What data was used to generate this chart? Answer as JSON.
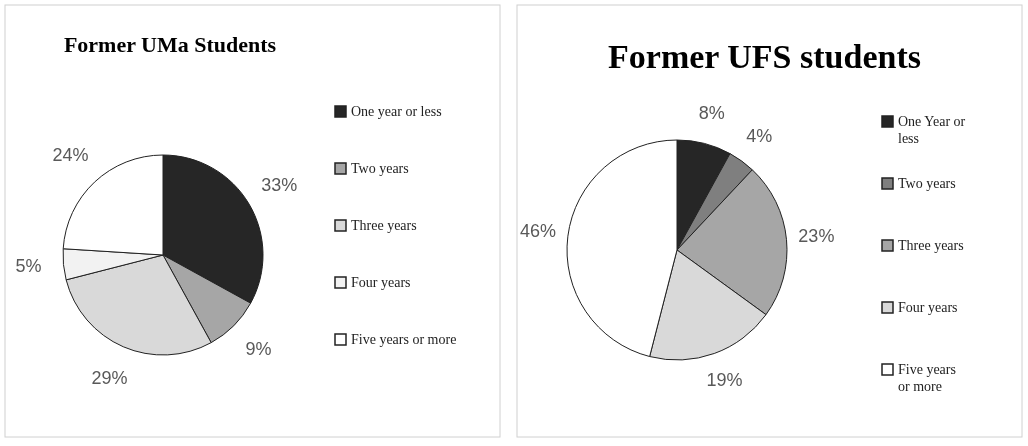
{
  "chart_data": [
    {
      "type": "pie",
      "title": "Former UMa Students",
      "categories": [
        "One year or less",
        "Two years",
        "Three years",
        "Four years",
        "Five years or more"
      ],
      "values": [
        33,
        9,
        29,
        5,
        24
      ],
      "value_labels": [
        "33%",
        "9%",
        "29%",
        "5%",
        "24%"
      ],
      "colors": [
        "#262626",
        "#a6a6a6",
        "#d9d9d9",
        "#f2f2f2",
        "#ffffff"
      ],
      "legend": "right"
    },
    {
      "type": "pie",
      "title": "Former UFS students",
      "categories": [
        "One Year or less",
        "Two years",
        "Three years",
        "Four years",
        "Five years or more"
      ],
      "values": [
        8,
        4,
        23,
        19,
        46
      ],
      "value_labels": [
        "8%",
        "4%",
        "23%",
        "19%",
        "46%"
      ],
      "colors": [
        "#262626",
        "#7f7f7f",
        "#a6a6a6",
        "#d9d9d9",
        "#ffffff"
      ],
      "legend": "right"
    }
  ]
}
